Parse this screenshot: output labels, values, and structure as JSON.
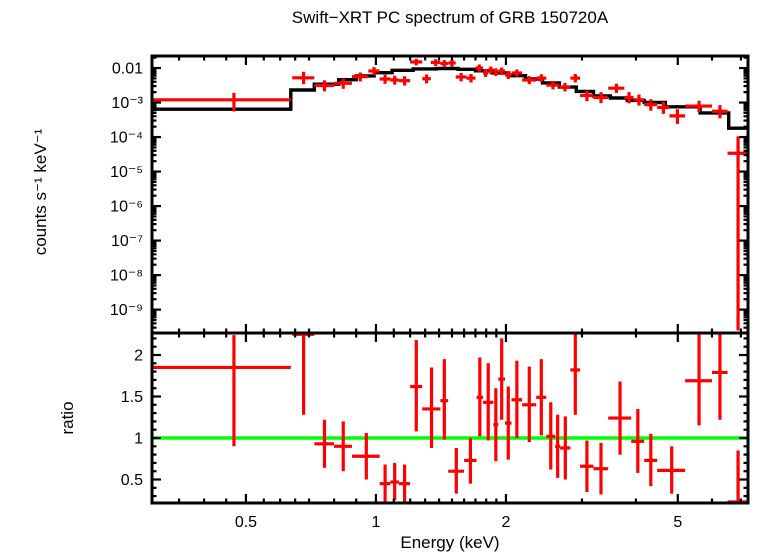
{
  "title": "Swift−XRT PC spectrum of GRB 150720A",
  "colors": {
    "data": "#ff0000",
    "model": "#000000",
    "reference": "#00ff00",
    "frame": "#000000",
    "background": "#ffffff"
  },
  "chart_data": {
    "type": "scatter",
    "title": "Swift−XRT PC spectrum of GRB 150720A",
    "xlabel": "Energy (keV)",
    "xscale": "log",
    "xlim": [
      0.303,
      7.27
    ],
    "xticks": [
      {
        "v": 0.5,
        "label": "0.5"
      },
      {
        "v": 1,
        "label": "1"
      },
      {
        "v": 2,
        "label": "2"
      },
      {
        "v": 5,
        "label": "5"
      }
    ],
    "xminor": [
      0.35,
      0.4,
      0.45,
      0.55,
      0.6,
      0.65,
      0.7,
      0.8,
      0.9,
      1.1,
      1.2,
      1.3,
      1.4,
      1.5,
      1.6,
      1.7,
      1.8,
      1.9,
      3,
      4,
      6,
      7
    ],
    "legend": "none",
    "grid": false,
    "panels": [
      {
        "name": "spectrum",
        "ylabel": "counts s⁻¹ keV⁻¹",
        "yscale": "log",
        "ylim": [
          2.1e-10,
          0.0223
        ],
        "yticks": [
          {
            "v": 0.01,
            "label": "0.01"
          },
          {
            "v": 0.001,
            "label": "10⁻³"
          },
          {
            "v": 0.0001,
            "label": "10⁻⁴"
          },
          {
            "v": 1e-05,
            "label": "10⁻⁵"
          },
          {
            "v": 1e-06,
            "label": "10⁻⁶"
          },
          {
            "v": 1e-07,
            "label": "10⁻⁷"
          },
          {
            "v": 1e-08,
            "label": "10⁻⁸"
          },
          {
            "v": 1e-09,
            "label": "10⁻⁹"
          }
        ],
        "points_format": [
          "e_lo_keV",
          "e_hi_keV",
          "value",
          "err_lo",
          "err_hi"
        ],
        "points": [
          [
            0.303,
            0.635,
            0.0012,
            0.00055,
            0.0019
          ],
          [
            0.64,
            0.72,
            0.0052,
            0.0034,
            0.0078
          ],
          [
            0.72,
            0.8,
            0.0031,
            0.0021,
            0.0044
          ],
          [
            0.8,
            0.88,
            0.0036,
            0.0025,
            0.005
          ],
          [
            0.88,
            0.96,
            0.0056,
            0.0041,
            0.0074
          ],
          [
            0.96,
            1.02,
            0.0082,
            0.0062,
            0.0106
          ],
          [
            1.02,
            1.08,
            0.0048,
            0.0035,
            0.0064
          ],
          [
            1.08,
            1.13,
            0.0045,
            0.0033,
            0.006
          ],
          [
            1.13,
            1.2,
            0.0043,
            0.0031,
            0.0058
          ],
          [
            1.2,
            1.28,
            0.015,
            0.012,
            0.0185
          ],
          [
            1.28,
            1.34,
            0.0049,
            0.0036,
            0.0065
          ],
          [
            1.34,
            1.41,
            0.0145,
            0.0115,
            0.018
          ],
          [
            1.41,
            1.47,
            0.0135,
            0.0107,
            0.017
          ],
          [
            1.47,
            1.53,
            0.014,
            0.011,
            0.0175
          ],
          [
            1.53,
            1.62,
            0.0055,
            0.0041,
            0.0072
          ],
          [
            1.62,
            1.7,
            0.0051,
            0.0038,
            0.0067
          ],
          [
            1.7,
            1.77,
            0.01,
            0.0078,
            0.0127
          ],
          [
            1.77,
            1.82,
            0.0072,
            0.0055,
            0.0092
          ],
          [
            1.82,
            1.87,
            0.0087,
            0.0067,
            0.011
          ],
          [
            1.87,
            1.92,
            0.0077,
            0.0059,
            0.0098
          ],
          [
            1.92,
            1.99,
            0.0082,
            0.0063,
            0.0104
          ],
          [
            1.99,
            2.06,
            0.0063,
            0.0048,
            0.0081
          ],
          [
            2.06,
            2.18,
            0.0072,
            0.0056,
            0.0091
          ],
          [
            2.18,
            2.35,
            0.0045,
            0.0034,
            0.0058
          ],
          [
            2.35,
            2.48,
            0.0051,
            0.0039,
            0.0066
          ],
          [
            2.48,
            2.66,
            0.0032,
            0.0024,
            0.0042
          ],
          [
            2.66,
            2.82,
            0.0028,
            0.0021,
            0.0037
          ],
          [
            2.82,
            2.97,
            0.0051,
            0.0038,
            0.0067
          ],
          [
            2.97,
            3.19,
            0.0016,
            0.0011,
            0.0022
          ],
          [
            3.19,
            3.45,
            0.0014,
            0.00096,
            0.002
          ],
          [
            3.45,
            3.76,
            0.0026,
            0.0019,
            0.0035
          ],
          [
            3.76,
            3.95,
            0.0014,
            0.00095,
            0.002
          ],
          [
            3.95,
            4.18,
            0.0012,
            0.00082,
            0.0017
          ],
          [
            4.18,
            4.48,
            0.00087,
            0.00058,
            0.00125
          ],
          [
            4.48,
            4.78,
            0.00072,
            0.00047,
            0.00105
          ],
          [
            4.78,
            5.2,
            0.00041,
            0.00024,
            0.00064
          ],
          [
            5.2,
            6.0,
            0.00079,
            0.00053,
            0.00112
          ],
          [
            6.0,
            6.52,
            0.00056,
            0.00035,
            0.00084
          ],
          [
            6.52,
            7.27,
            3.4e-05,
            2.5e-10,
            0.000105
          ]
        ],
        "model_steps_format": [
          "e_lo_keV",
          "e_hi_keV",
          "model_value"
        ],
        "model_steps": [
          [
            0.303,
            0.635,
            0.00064
          ],
          [
            0.635,
            0.72,
            0.0023
          ],
          [
            0.72,
            0.82,
            0.0034
          ],
          [
            0.82,
            0.9,
            0.0046
          ],
          [
            0.9,
            0.99,
            0.0059
          ],
          [
            0.99,
            1.09,
            0.0073
          ],
          [
            1.09,
            1.22,
            0.0086
          ],
          [
            1.22,
            1.38,
            0.0094
          ],
          [
            1.38,
            1.55,
            0.0097
          ],
          [
            1.55,
            1.7,
            0.0092
          ],
          [
            1.7,
            1.86,
            0.0083
          ],
          [
            1.86,
            2.03,
            0.0072
          ],
          [
            2.03,
            2.22,
            0.006
          ],
          [
            2.22,
            2.43,
            0.0048
          ],
          [
            2.43,
            2.66,
            0.0037
          ],
          [
            2.66,
            2.91,
            0.0028
          ],
          [
            2.91,
            3.19,
            0.0021
          ],
          [
            3.19,
            3.49,
            0.00155
          ],
          [
            3.49,
            3.82,
            0.00135
          ],
          [
            3.82,
            4.18,
            0.00115
          ],
          [
            4.18,
            4.68,
            0.001
          ],
          [
            4.68,
            5.63,
            0.00075
          ],
          [
            5.63,
            6.56,
            0.0005
          ],
          [
            6.56,
            7.27,
            0.00018
          ]
        ]
      },
      {
        "name": "ratio",
        "ylabel": "ratio",
        "yscale": "linear",
        "ylim": [
          0.217,
          2.265
        ],
        "yticks": [
          {
            "v": 2,
            "label": "2"
          },
          {
            "v": 1.5,
            "label": "1.5"
          },
          {
            "v": 1,
            "label": "1"
          },
          {
            "v": 0.5,
            "label": "0.5"
          }
        ],
        "yminor_step": 0.1,
        "reference_line": {
          "value": 1
        },
        "points_format": [
          "e_lo_keV",
          "e_hi_keV",
          "ratio",
          "err_lo",
          "err_hi"
        ],
        "points": [
          [
            0.303,
            0.635,
            1.85,
            0.9,
            2.24
          ],
          [
            0.64,
            0.72,
            2.25,
            1.28,
            2.265
          ],
          [
            0.72,
            0.8,
            0.93,
            0.64,
            1.22
          ],
          [
            0.8,
            0.88,
            0.9,
            0.6,
            1.2
          ],
          [
            0.88,
            1.02,
            0.78,
            0.5,
            1.06
          ],
          [
            1.02,
            1.08,
            0.45,
            0.22,
            0.68
          ],
          [
            1.08,
            1.13,
            0.47,
            0.25,
            0.7
          ],
          [
            1.13,
            1.2,
            0.45,
            0.23,
            0.68
          ],
          [
            1.2,
            1.28,
            1.62,
            1.08,
            2.18
          ],
          [
            1.28,
            1.41,
            1.35,
            0.88,
            1.85
          ],
          [
            1.41,
            1.47,
            1.45,
            0.98,
            1.95
          ],
          [
            1.47,
            1.6,
            0.6,
            0.33,
            0.88
          ],
          [
            1.6,
            1.71,
            0.73,
            0.45,
            1.0
          ],
          [
            1.71,
            1.77,
            1.49,
            1.02,
            1.97
          ],
          [
            1.77,
            1.87,
            1.43,
            0.97,
            1.9
          ],
          [
            1.87,
            1.92,
            1.16,
            0.72,
            1.6
          ],
          [
            1.92,
            1.99,
            1.71,
            1.22,
            2.2
          ],
          [
            1.99,
            2.06,
            1.18,
            0.74,
            1.62
          ],
          [
            2.06,
            2.18,
            1.46,
            1.0,
            1.93
          ],
          [
            2.18,
            2.35,
            1.4,
            0.95,
            1.86
          ],
          [
            2.35,
            2.48,
            1.49,
            1.03,
            1.95
          ],
          [
            2.48,
            2.6,
            1.02,
            0.62,
            1.43
          ],
          [
            2.6,
            2.67,
            0.9,
            0.52,
            1.28
          ],
          [
            2.67,
            2.82,
            0.88,
            0.5,
            1.26
          ],
          [
            2.82,
            2.97,
            1.82,
            1.28,
            2.265
          ],
          [
            2.97,
            3.19,
            0.66,
            0.35,
            0.97
          ],
          [
            3.19,
            3.45,
            0.63,
            0.32,
            0.94
          ],
          [
            3.45,
            3.9,
            1.24,
            0.8,
            1.68
          ],
          [
            3.9,
            4.18,
            0.96,
            0.58,
            1.35
          ],
          [
            4.18,
            4.48,
            0.73,
            0.42,
            1.05
          ],
          [
            4.48,
            5.2,
            0.61,
            0.33,
            0.9
          ],
          [
            5.2,
            6.0,
            1.69,
            1.15,
            2.25
          ],
          [
            6.0,
            6.52,
            1.79,
            1.22,
            2.265
          ],
          [
            6.52,
            7.27,
            0.23,
            0.217,
            0.85
          ]
        ]
      }
    ]
  }
}
